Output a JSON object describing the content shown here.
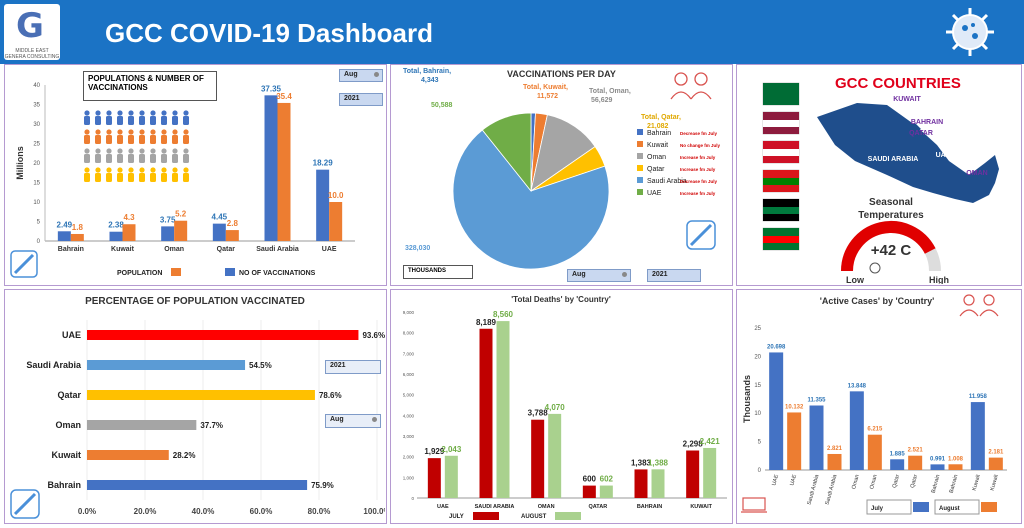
{
  "header": {
    "title": "GCC COVID-19 Dashboard",
    "logo_letter": "G",
    "logo_line1": "MIDDLE EAST",
    "logo_line2": "GENERA CONSULTING"
  },
  "filters": {
    "month": "Aug",
    "year": "2021"
  },
  "colors": {
    "blue": "#4472c4",
    "orange": "#ed7d31",
    "red": "#c00000",
    "green": "#a9d18e",
    "header": "#1b73c5"
  },
  "populations_chart": {
    "title_line1": "POPULATIONS & NUMBER OF",
    "title_line2": "VACCINATIONS",
    "ylabel": "Millions",
    "legend_population": "POPULATION",
    "legend_vaccinations": "NO OF VACCINATIONS",
    "chart_data": {
      "type": "bar",
      "categories": [
        "Bahrain",
        "Kuwait",
        "Oman",
        "Qatar",
        "Saudi Arabia",
        "UAE"
      ],
      "series": [
        {
          "name": "NO OF VACCINATIONS",
          "values": [
            2.49,
            2.38,
            3.75,
            4.45,
            37.35,
            18.29
          ],
          "labels": [
            "2.49",
            "2.38",
            "3.75",
            "4.45",
            "37.35",
            "18.29"
          ]
        },
        {
          "name": "POPULATION",
          "values": [
            1.8,
            4.3,
            5.2,
            2.8,
            35.4,
            10.0
          ],
          "labels": [
            "1.8",
            "4.3",
            "5.2",
            "2.8",
            "35.4",
            "10.0"
          ]
        }
      ],
      "ylim": [
        0,
        40
      ],
      "yticks": [
        "0",
        "5",
        "10",
        "15",
        "20",
        "25",
        "30",
        "35",
        "40"
      ]
    }
  },
  "vaccinations_per_day": {
    "title": "VACCINATIONS PER DAY",
    "units_box": "THOUSANDS",
    "chart_data": {
      "type": "pie",
      "slices": [
        {
          "name": "Bahrain",
          "value": 4343,
          "label": "Total, Bahrain, 4,343",
          "note": "Decrease fm July",
          "color": "#4472c4"
        },
        {
          "name": "Kuwait",
          "value": 11572,
          "label": "Total, Kuwait, 11,572",
          "note": "No change fm July",
          "color": "#ed7d31"
        },
        {
          "name": "Oman",
          "value": 56629,
          "label": "Total, Oman, 56,629",
          "note": "Increase fm July",
          "color": "#a5a5a5"
        },
        {
          "name": "Qatar",
          "value": 21082,
          "label": "Total, Qatar, 21,082",
          "note": "Increase fm July",
          "color": "#ffc000"
        },
        {
          "name": "Saudi Arabia",
          "value": 328030,
          "label": "328,030",
          "note": "Decrease fm July",
          "color": "#5b9bd5"
        },
        {
          "name": "UAE",
          "value": 50588,
          "label": "50,588",
          "note": "Increase fm July",
          "color": "#70ad47"
        }
      ]
    }
  },
  "countries_panel": {
    "title": "GCC COUNTRIES",
    "map_labels": {
      "kuwait": "KUWAIT",
      "bahrain": "BAHRAIN",
      "qatar": "QATAR",
      "saudi": "SAUDI ARABIA",
      "uae": "UAE",
      "oman": "OMAN"
    },
    "seasonal_line1": "Seasonal",
    "seasonal_line2": "Temperatures",
    "gauge_value": "+42 C",
    "gauge_low": "Low",
    "gauge_high": "High",
    "gauge_level_fraction": 0.85
  },
  "percentage_chart": {
    "title": "PERCENTAGE OF POPULATION VACCINATED",
    "chart_data": {
      "type": "bar",
      "orientation": "horizontal",
      "categories": [
        "UAE",
        "Saudi Arabia",
        "Qatar",
        "Oman",
        "Kuwait",
        "Bahrain"
      ],
      "values": [
        93.6,
        54.5,
        78.6,
        37.7,
        28.2,
        75.9
      ],
      "labels": [
        "93.6%",
        "54.5%",
        "78.6%",
        "37.7%",
        "28.2%",
        "75.9%"
      ],
      "colors": [
        "#ff0000",
        "#5b9bd5",
        "#ffc000",
        "#a5a5a5",
        "#ed7d31",
        "#4472c4"
      ],
      "xlim": [
        0,
        100
      ],
      "xticks": [
        "0.0%",
        "20.0%",
        "40.0%",
        "60.0%",
        "80.0%",
        "100.0%"
      ]
    }
  },
  "deaths_chart": {
    "title": "'Total Deaths' by 'Country'",
    "legend_july": "JULY",
    "legend_august": "AUGUST",
    "chart_data": {
      "type": "bar",
      "categories": [
        "UAE",
        "SAUDI ARABIA",
        "OMAN",
        "QATAR",
        "BAHRAIN",
        "KUWAIT"
      ],
      "series": [
        {
          "name": "JULY",
          "values": [
            1929,
            8189,
            3788,
            600,
            1383,
            2298
          ],
          "labels": [
            "1,929",
            "8,189",
            "3,788",
            "600",
            "1,383",
            "2,298"
          ]
        },
        {
          "name": "AUGUST",
          "values": [
            2043,
            8560,
            4070,
            602,
            1388,
            2421
          ],
          "labels": [
            "2,043",
            "8,560",
            "4,070",
            "602",
            "1,388",
            "2,421"
          ]
        }
      ],
      "ylim": [
        0,
        9000
      ],
      "yticks": [
        "0",
        "1,000",
        "2,000",
        "3,000",
        "4,000",
        "5,000",
        "6,000",
        "7,000",
        "8,000",
        "9,000"
      ]
    }
  },
  "active_cases_chart": {
    "title": "'Active Cases' by 'Country'",
    "ylabel": "Thousands",
    "legend_july": "July",
    "legend_august": "August",
    "chart_data": {
      "type": "bar",
      "categories": [
        "UAE",
        "Saudi Arabia",
        "Oman",
        "Qatar",
        "Bahrain",
        "Kuwait"
      ],
      "series": [
        {
          "name": "July",
          "values": [
            20.698,
            11.355,
            13.848,
            1.885,
            0.991,
            11.958
          ],
          "labels": [
            "20.698",
            "11.355",
            "13.848",
            "1.885",
            "0.991",
            "11.958"
          ]
        },
        {
          "name": "August",
          "values": [
            10.132,
            2.821,
            6.215,
            2.521,
            1.008,
            2.181
          ],
          "labels": [
            "10.132",
            "2.821",
            "6.215",
            "2.521",
            "1.008",
            "2.181"
          ]
        }
      ],
      "ylim": [
        0,
        25
      ],
      "yticks": [
        "0",
        "5",
        "10",
        "15",
        "20",
        "25"
      ]
    }
  }
}
